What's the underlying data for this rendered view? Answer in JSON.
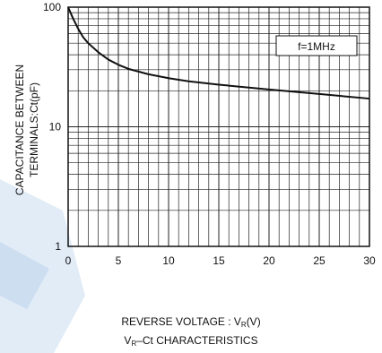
{
  "chart_data": {
    "type": "line",
    "xscale": "linear",
    "yscale": "log",
    "xlim": [
      0,
      30
    ],
    "ylim": [
      1,
      100
    ],
    "grid": true,
    "x_ticks": [
      0,
      5,
      10,
      15,
      20,
      25,
      30
    ],
    "x_tick_labels": [
      "0",
      "5",
      "10",
      "15",
      "20",
      "25",
      "30"
    ],
    "y_ticks": [
      1,
      10,
      100
    ],
    "y_tick_labels": [
      "1",
      "10",
      "100"
    ],
    "ylabel_line1": "CAPACITANCE BETWEEN",
    "ylabel_line2": "TERMINALS:Ct(pF)",
    "xlabel_prefix": "REVERSE VOLTAGE : V",
    "xlabel_sub": "R",
    "xlabel_suffix": "(V)",
    "title_prefix": "V",
    "title_sub": "R",
    "title_suffix": "–Ct CHARACTERISTICS",
    "legend_text": "f=1MHz",
    "legend_position": "top-right",
    "series": [
      {
        "x": [
          0,
          0.5,
          1,
          1.5,
          2,
          3,
          4,
          5,
          6,
          8,
          10,
          12,
          15,
          20,
          25,
          30
        ],
        "y": [
          100,
          80,
          66,
          56,
          50,
          42,
          36.5,
          33,
          30.5,
          27.5,
          25.5,
          24,
          22.5,
          20.5,
          18.8,
          17.2
        ]
      }
    ],
    "colors": {
      "line": "#111111",
      "grid": "#222222",
      "watermark": "#b8cfe9"
    }
  }
}
